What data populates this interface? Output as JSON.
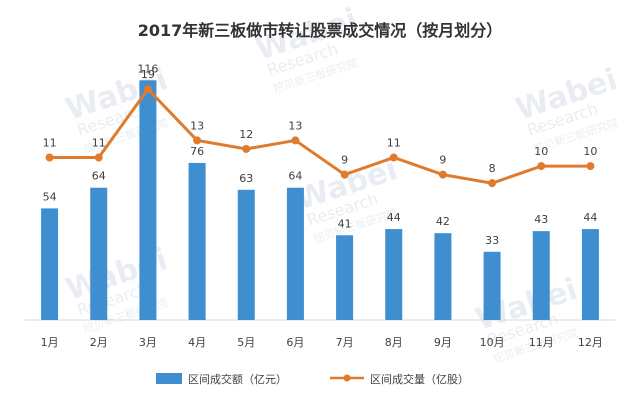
{
  "chart_data": {
    "type": "bar+line",
    "title": "2017年新三板做市转让股票成交情况（按月划分）",
    "categories": [
      "1月",
      "2月",
      "3月",
      "4月",
      "5月",
      "6月",
      "7月",
      "8月",
      "9月",
      "10月",
      "11月",
      "12月"
    ],
    "series": [
      {
        "name": "区间成交额（亿元）",
        "type": "bar",
        "color": "#3f8fd0",
        "values": [
          54,
          64,
          116,
          76,
          63,
          64,
          41,
          44,
          42,
          33,
          43,
          44
        ]
      },
      {
        "name": "区间成交量（亿股）",
        "type": "line",
        "color": "#e07b2e",
        "values": [
          11,
          11,
          19,
          13,
          12,
          13,
          9,
          11,
          9,
          8,
          10,
          10
        ]
      }
    ],
    "bar_ylim": [
      0,
      120
    ],
    "line_ylim": [
      -8,
      21
    ],
    "legend_position": "bottom-center",
    "grid": false
  },
  "watermark": {
    "brand": "Wabei",
    "sub": "Research",
    "cn": "挖贝新三板研究院"
  }
}
